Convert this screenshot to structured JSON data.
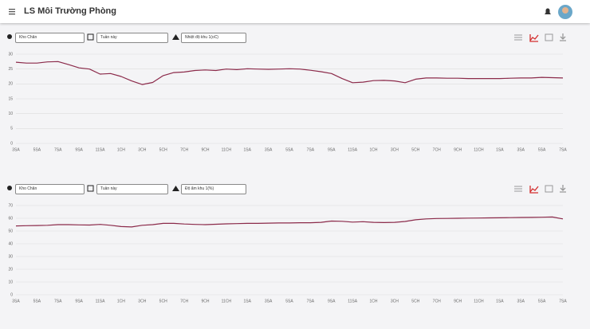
{
  "header": {
    "title": "LS Môi Trường Phòng"
  },
  "panels": [
    {
      "location": "Kho Chăn",
      "period": "Tuần này",
      "sensor": "Nhiệt độ khu 1(oC)"
    },
    {
      "location": "Kho Chăn",
      "period": "Tuần này",
      "sensor": "Độ ẩm khu 1(%)"
    }
  ],
  "chart_data": [
    {
      "type": "line",
      "categories": [
        "3SA",
        null,
        "5SA",
        null,
        "7SA",
        null,
        "9SA",
        null,
        "11SA",
        null,
        "1CH",
        null,
        "3CH",
        null,
        "5CH",
        null,
        "7CH",
        null,
        "9CH",
        null,
        "11CH",
        null,
        "1SA",
        null,
        "3SA",
        null,
        "5SA",
        null,
        "7SA",
        null,
        "9SA",
        null,
        "11SA",
        null,
        "1CH",
        null,
        "3CH",
        null,
        "5CH",
        null,
        "7CH",
        null,
        "9CH",
        null,
        "11CH",
        null,
        "1SA",
        null,
        "3SA",
        null,
        "5SA",
        null,
        "7SA"
      ],
      "series": [
        {
          "color": "#8b2a4a",
          "values": [
            27.3,
            27,
            27,
            27.4,
            27.5,
            26.5,
            25.4,
            25,
            23.3,
            23.5,
            22.5,
            21,
            19.8,
            20.5,
            22.8,
            23.8,
            24,
            24.5,
            24.7,
            24.5,
            25,
            24.8,
            25.1,
            25,
            24.9,
            25,
            25.1,
            25,
            24.6,
            24.1,
            23.5,
            21.8,
            20.4,
            20.6,
            21.1,
            21.2,
            21,
            20.4,
            21.6,
            22,
            22,
            21.9,
            21.9,
            21.8,
            21.8,
            21.8,
            21.8,
            21.9,
            22,
            22,
            22.2,
            22.1,
            22
          ]
        }
      ],
      "ylim": [
        0,
        30
      ],
      "yticks": [
        0,
        5,
        10,
        15,
        20,
        25,
        30
      ],
      "grid": true
    },
    {
      "type": "line",
      "categories": [
        "3SA",
        null,
        "5SA",
        null,
        "7SA",
        null,
        "9SA",
        null,
        "11SA",
        null,
        "1CH",
        null,
        "3CH",
        null,
        "5CH",
        null,
        "7CH",
        null,
        "9CH",
        null,
        "11CH",
        null,
        "1SA",
        null,
        "3SA",
        null,
        "5SA",
        null,
        "7SA",
        null,
        "9SA",
        null,
        "11SA",
        null,
        "1CH",
        null,
        "3CH",
        null,
        "5CH",
        null,
        "7CH",
        null,
        "9CH",
        null,
        "11CH",
        null,
        "1SA",
        null,
        "3SA",
        null,
        "5SA",
        null,
        "7SA"
      ],
      "series": [
        {
          "color": "#8b2a4a",
          "values": [
            54,
            54.2,
            54.3,
            54.5,
            55,
            55,
            54.8,
            54.7,
            55.2,
            54.5,
            53.5,
            53.2,
            54.5,
            55,
            56,
            56,
            55.5,
            55.2,
            55,
            55.3,
            55.6,
            55.8,
            56,
            56,
            56.2,
            56.3,
            56.3,
            56.5,
            56.5,
            56.8,
            57.8,
            57.6,
            57,
            57.3,
            56.8,
            56.6,
            56.8,
            57.5,
            58.8,
            59.5,
            59.8,
            59.9,
            60,
            60.1,
            60.2,
            60.3,
            60.4,
            60.5,
            60.6,
            60.7,
            60.8,
            61,
            59.5
          ]
        }
      ],
      "ylim": [
        0,
        70
      ],
      "yticks": [
        0,
        10,
        20,
        30,
        40,
        50,
        60,
        70
      ],
      "grid": true
    }
  ]
}
